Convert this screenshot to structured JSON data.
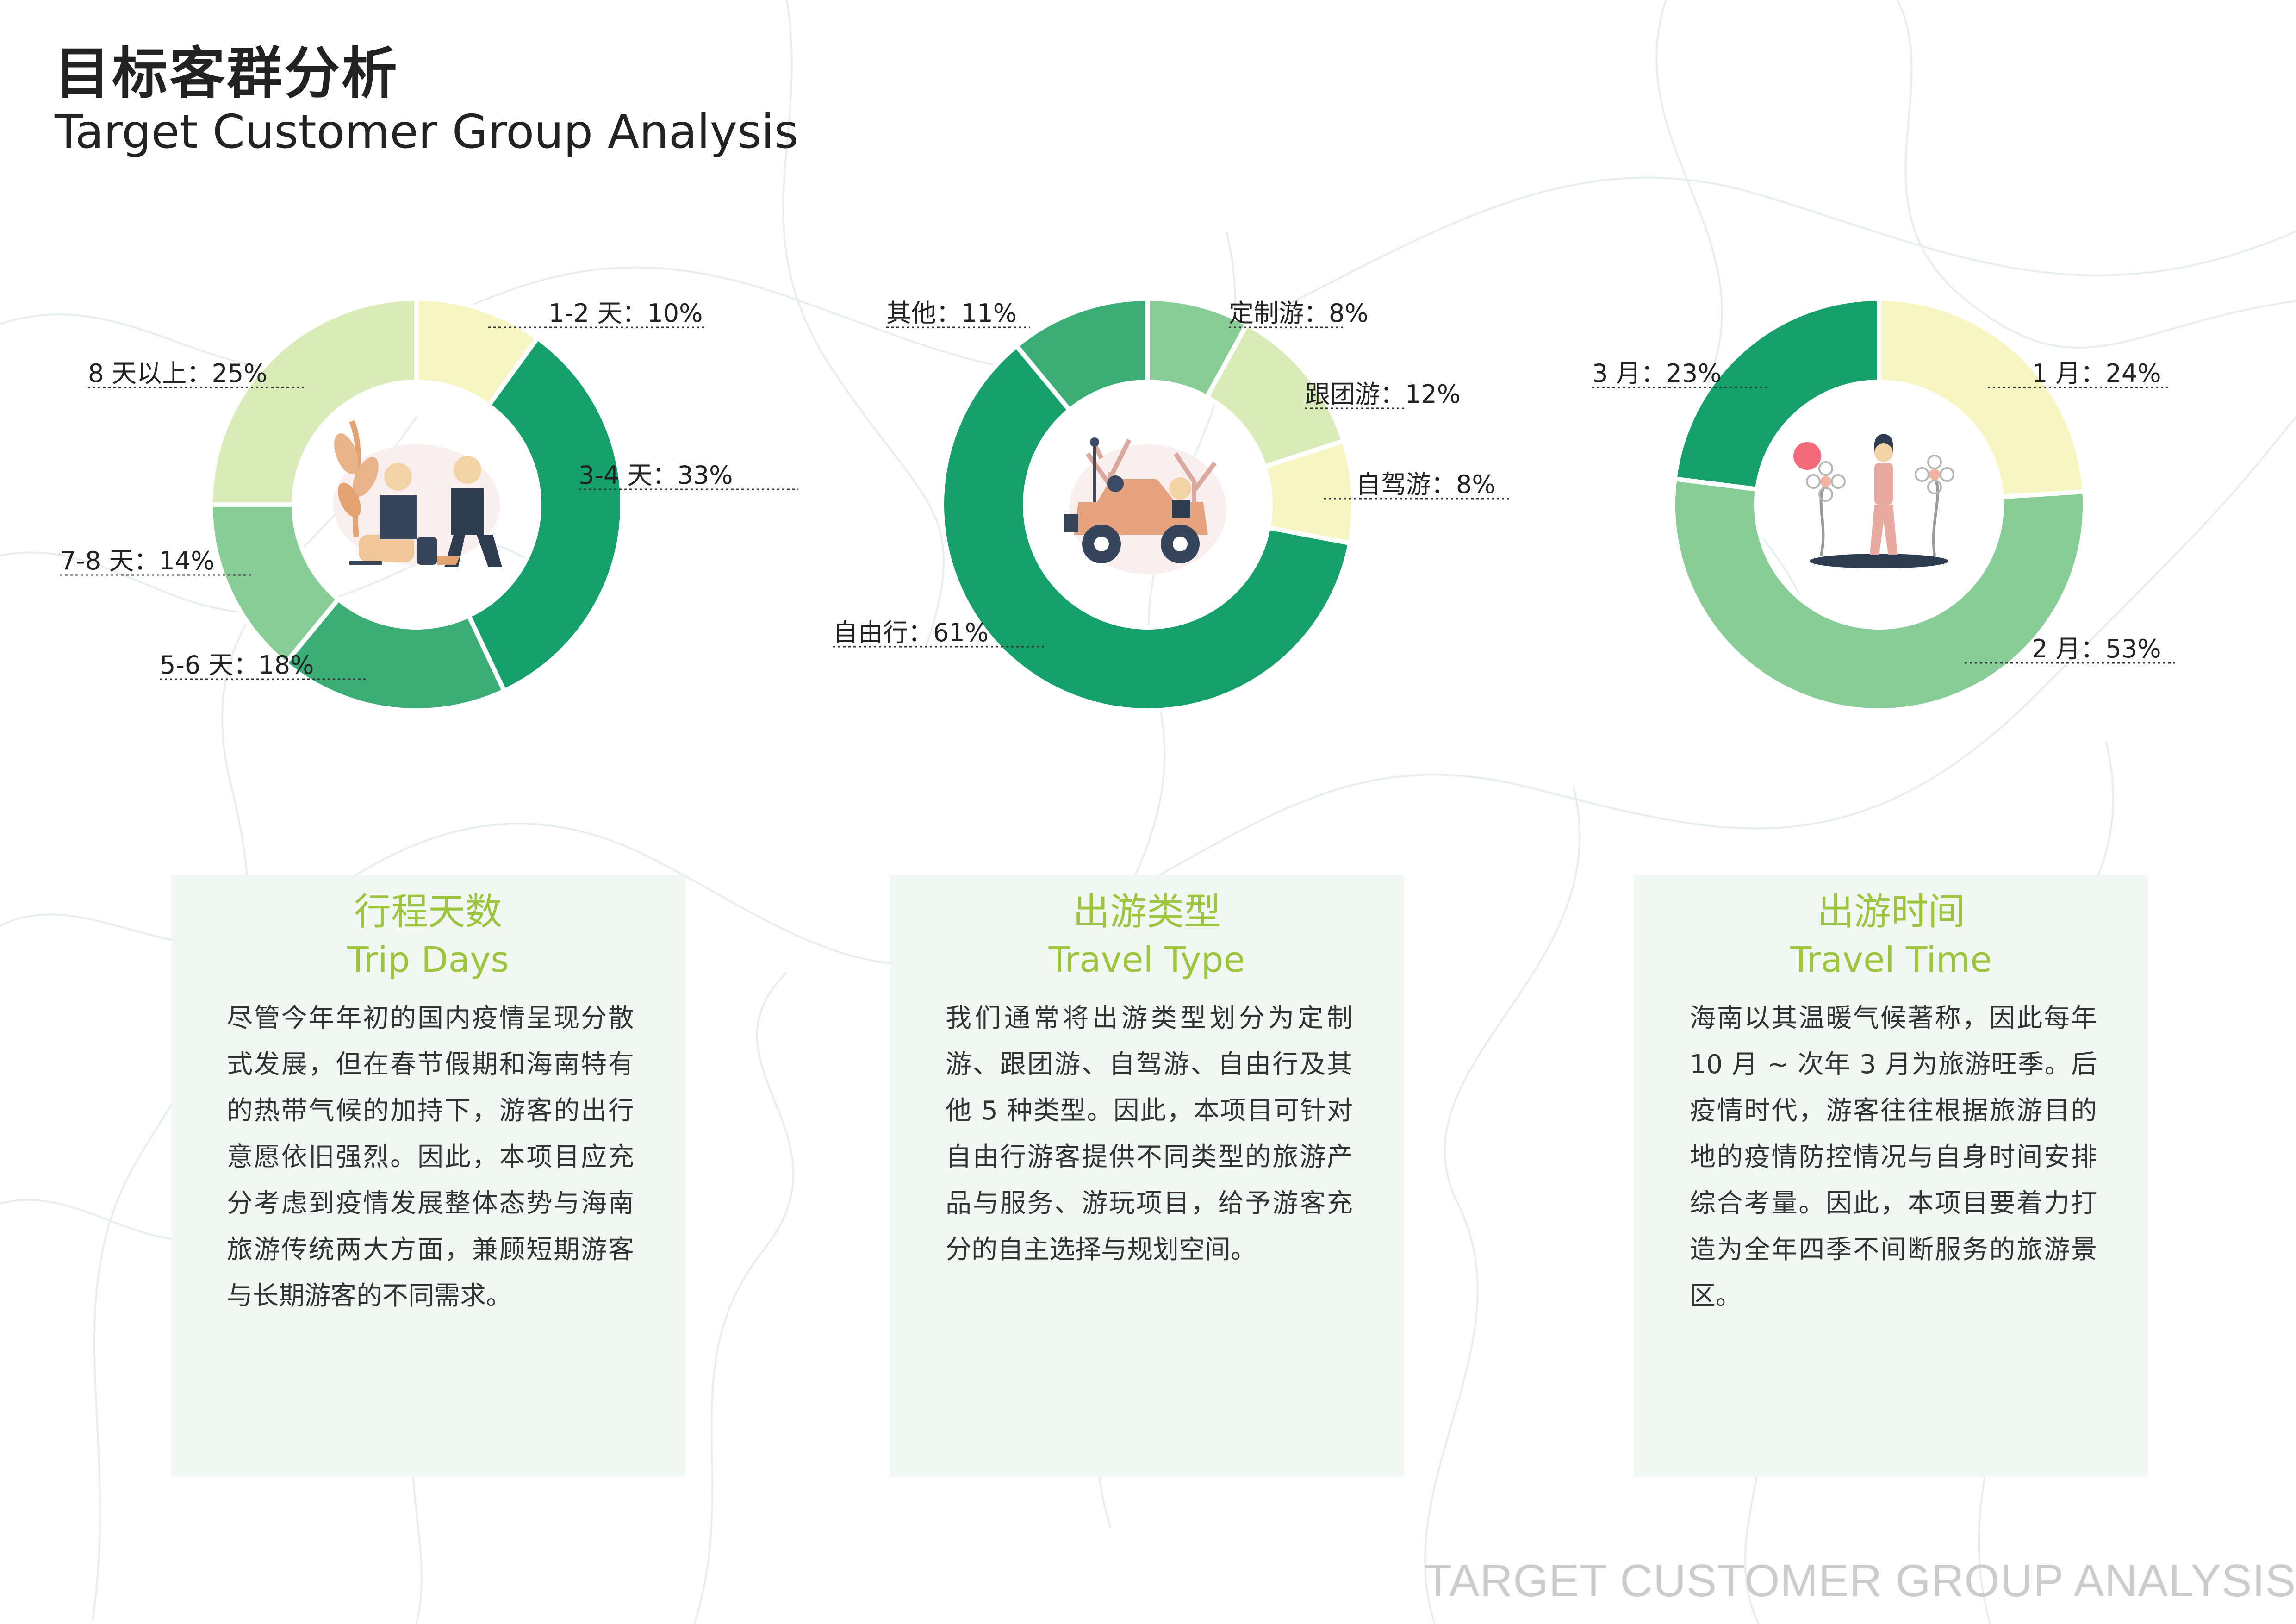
{
  "page": {
    "title_cn": "目标客群分析",
    "title_en": "Target Customer Group Analysis",
    "footer": "TARGET CUSTOMER GROUP ANALYSIS"
  },
  "colors": {
    "pale_yellow": "#f7f6c2",
    "pale_green": "#d8ebb8",
    "light_green": "#88cd98",
    "mid_green": "#3bae78",
    "deep_green": "#16a06a",
    "card_bg": "#f1f8f4",
    "card_title": "#9cc43c"
  },
  "chart_data": [
    {
      "type": "pie",
      "donut": true,
      "categories": [
        "1-2 天",
        "3-4 天",
        "5-6 天",
        "7-8 天",
        "8 天以上"
      ],
      "values": [
        10,
        33,
        18,
        14,
        25
      ],
      "labels": [
        "1-2 天：10%",
        "3-4 天：33%",
        "5-6 天：18%",
        "7-8 天：14%",
        "8 天以上：25%"
      ],
      "colors": [
        "#f7f6c2",
        "#16a06a",
        "#3bae78",
        "#88cd98",
        "#d8ebb8"
      ],
      "center_illustration": "people-camping-illustration"
    },
    {
      "type": "pie",
      "donut": true,
      "categories": [
        "定制游",
        "跟团游",
        "自驾游",
        "自由行",
        "其他"
      ],
      "values": [
        8,
        12,
        8,
        61,
        11
      ],
      "labels": [
        "定制游：8%",
        "跟团游：12%",
        "自驾游：8%",
        "自由行：61%",
        "其他：11%"
      ],
      "colors": [
        "#88cd98",
        "#d8ebb8",
        "#f7f6c2",
        "#16a06a",
        "#3bae78"
      ],
      "center_illustration": "road-trip-car-illustration"
    },
    {
      "type": "pie",
      "donut": true,
      "categories": [
        "1 月",
        "2 月",
        "3 月"
      ],
      "values": [
        24,
        53,
        23
      ],
      "labels": [
        "1 月：24%",
        "2 月：53%",
        "3 月：23%"
      ],
      "colors": [
        "#f7f6c2",
        "#88cd98",
        "#16a06a"
      ],
      "center_illustration": "woman-with-flowers-illustration"
    }
  ],
  "cards": [
    {
      "title_cn": "行程天数",
      "title_en": "Trip Days",
      "body": "尽管今年年初的国内疫情呈现分散式发展，但在春节假期和海南特有的热带气候的加持下，游客的出行意愿依旧强烈。因此，本项目应充分考虑到疫情发展整体态势与海南旅游传统两大方面，兼顾短期游客与长期游客的不同需求。"
    },
    {
      "title_cn": "出游类型",
      "title_en": "Travel Type",
      "body": "我们通常将出游类型划分为定制游、跟团游、自驾游、自由行及其他 5 种类型。因此，本项目可针对自由行游客提供不同类型的旅游产品与服务、游玩项目，给予游客充分的自主选择与规划空间。"
    },
    {
      "title_cn": "出游时间",
      "title_en": "Travel Time",
      "body": "海南以其温暖气候著称，因此每年 10 月 ~ 次年 3 月为旅游旺季。后疫情时代，游客往往根据旅游目的地的疫情防控情况与自身时间安排综合考量。因此，本项目要着力打造为全年四季不间断服务的旅游景区。"
    }
  ]
}
